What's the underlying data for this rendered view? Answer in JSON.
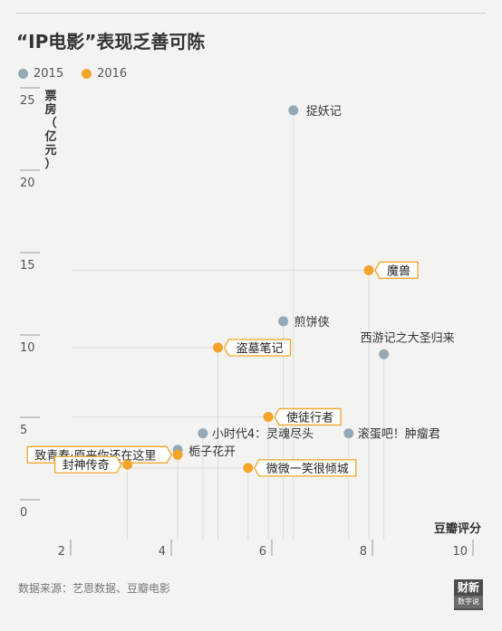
{
  "title": "“IP电影”表现乏善可陈",
  "source": "数据来源：艺恩数据、豆瓣电影",
  "logo": {
    "line1": "财新",
    "line2": "数字说"
  },
  "colors": {
    "series2015": "#93a9b5",
    "series2016": "#f2a52b",
    "label_border": "#f2a52b",
    "axis": "#555555",
    "guide": "#dcdcdc"
  },
  "chart_data": {
    "type": "scatter",
    "title": "“IP电影”表现乏善可陈",
    "xlabel": "豆瓣评分",
    "ylabel": "票房（亿元）",
    "xlim": [
      2,
      10
    ],
    "ylim": [
      0,
      25
    ],
    "xticks": [
      2,
      4,
      6,
      8,
      10
    ],
    "yticks": [
      0,
      5,
      10,
      15,
      20,
      25
    ],
    "legend": {
      "placement": "top-left",
      "entries": [
        "2015",
        "2016"
      ]
    },
    "series": [
      {
        "name": "2015",
        "points": [
          {
            "label": "捉妖记",
            "x": 6.5,
            "y": 24.4
          },
          {
            "label": "煎饼侠",
            "x": 6.3,
            "y": 11.6
          },
          {
            "label": "西游记之大圣归来",
            "x": 8.3,
            "y": 9.6
          },
          {
            "label": "小时代4：灵魂尽头",
            "x": 4.7,
            "y": 4.8
          },
          {
            "label": "滚蛋吧！肿瘤君",
            "x": 7.6,
            "y": 4.8
          },
          {
            "label": "栀子花开",
            "x": 4.2,
            "y": 3.8
          }
        ]
      },
      {
        "name": "2016",
        "points": [
          {
            "label": "魔兽",
            "x": 8.0,
            "y": 14.7
          },
          {
            "label": "盗墓笔记",
            "x": 5.0,
            "y": 10.0
          },
          {
            "label": "使徒行者",
            "x": 6.0,
            "y": 5.8
          },
          {
            "label": "致青春·原来你还在这里",
            "x": 4.2,
            "y": 3.5
          },
          {
            "label": "封神传奇",
            "x": 3.2,
            "y": 2.9
          },
          {
            "label": "微微一笑很倾城",
            "x": 5.6,
            "y": 2.7
          }
        ]
      }
    ]
  }
}
